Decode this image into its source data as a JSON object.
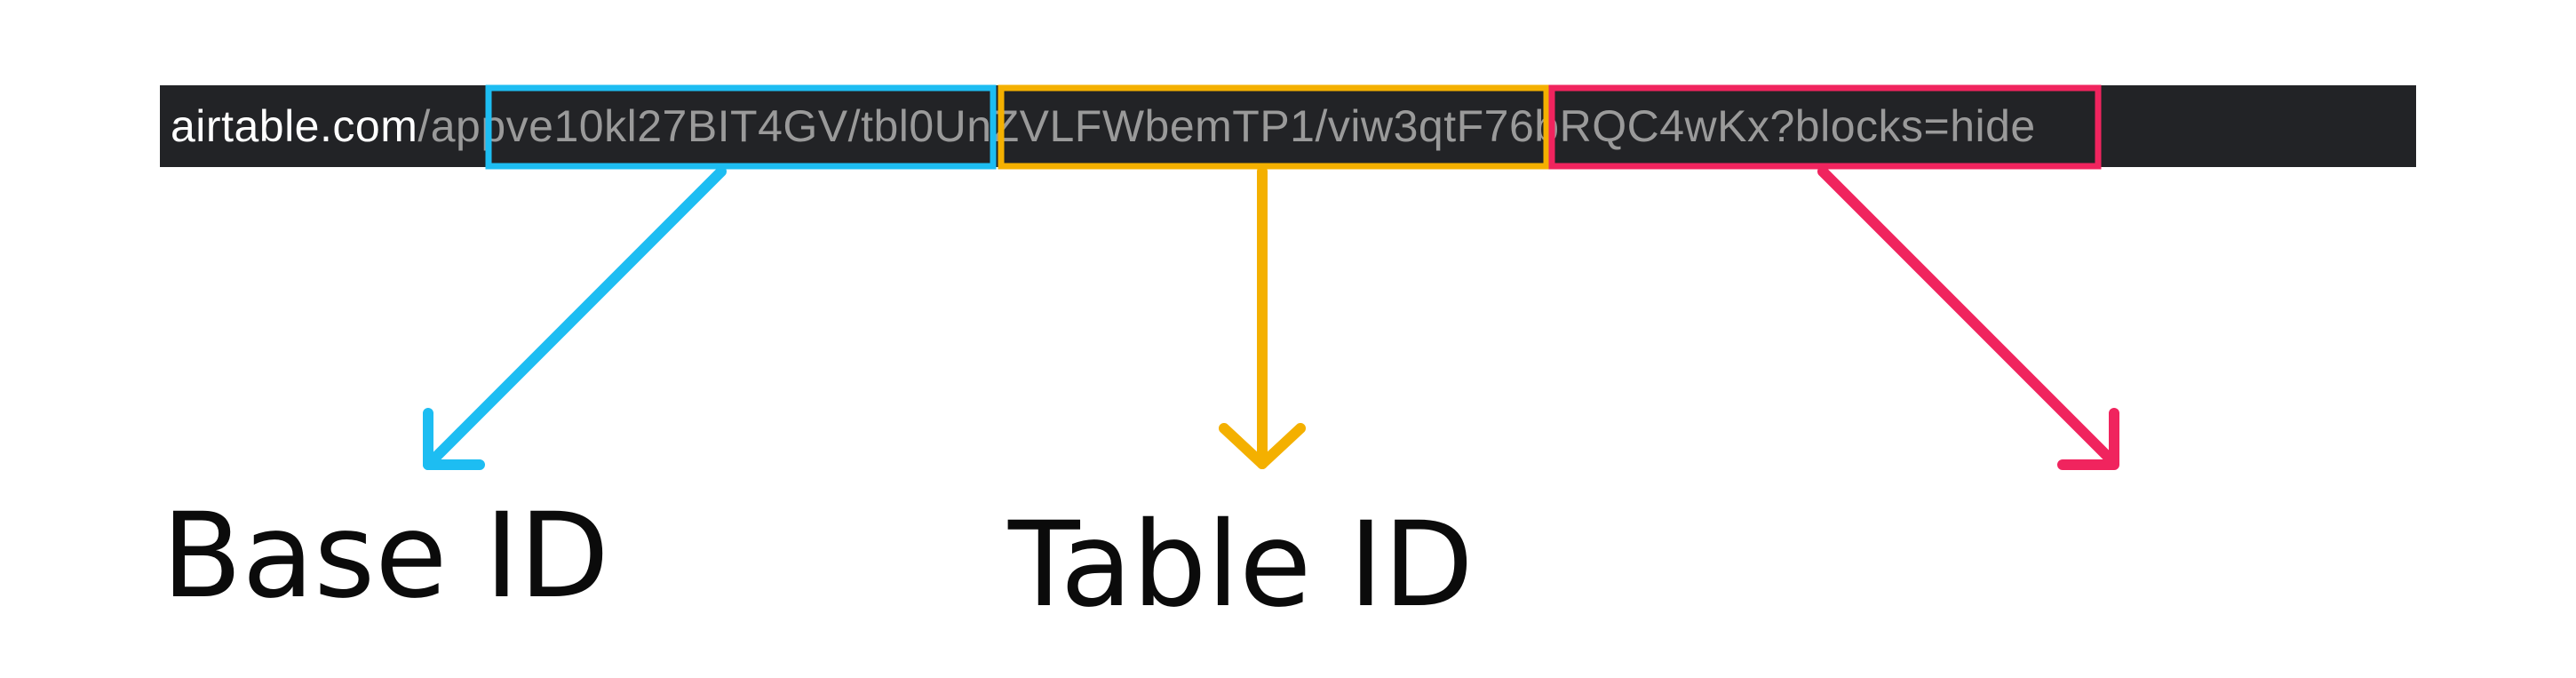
{
  "url": {
    "domain": "airtable.com",
    "sep1": "/",
    "base_id": "appve10kl27BIT4GV",
    "sep2": "/",
    "table_id": "tbl0UnZVLFWbemTP1",
    "sep3": "/",
    "view_id": "viw3qtF76bRQC4wKx",
    "query": "?blocks=hide"
  },
  "labels": {
    "base": "Base ID",
    "table": "Table ID"
  },
  "colors": {
    "base": "#1DBDF2",
    "table": "#F4B000",
    "view": "#F0245E",
    "bar": "#222326"
  }
}
